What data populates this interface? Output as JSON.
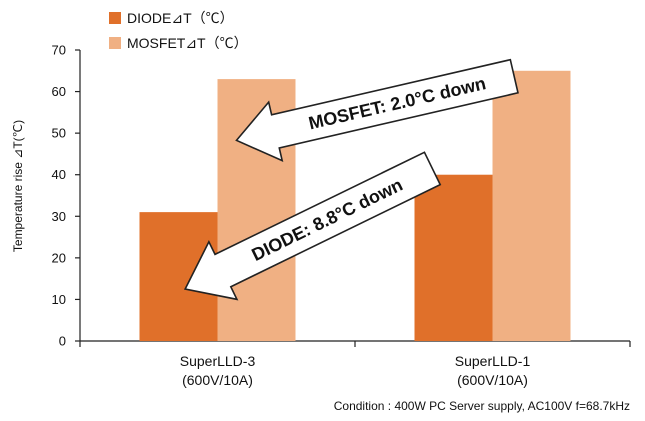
{
  "chart_data": {
    "type": "bar",
    "categories": [
      {
        "line1": "SuperLLD-3",
        "line2": "(600V/10A)"
      },
      {
        "line1": "SuperLLD-1",
        "line2": "(600V/10A)"
      }
    ],
    "series": [
      {
        "name": "DIODE⊿T（℃）",
        "values": [
          31,
          40
        ],
        "color": "#e0702a"
      },
      {
        "name": "MOSFET⊿T（℃）",
        "values": [
          63,
          65
        ],
        "color": "#f0b083"
      }
    ],
    "ylim": [
      0,
      70
    ],
    "yticks": [
      "0",
      "10",
      "20",
      "30",
      "40",
      "50",
      "60",
      "70"
    ],
    "ylabel": "Temperature rise ⊿T(℃)",
    "xlabel": "",
    "grid": false,
    "legend_position": "top-left",
    "annotations": {
      "mosfet_arrow": "MOSFET: 2.0°C down",
      "diode_arrow": "DIODE: 8.8°C down"
    },
    "condition": "Condition : 400W PC Server supply, AC100V f=68.7kHz"
  }
}
